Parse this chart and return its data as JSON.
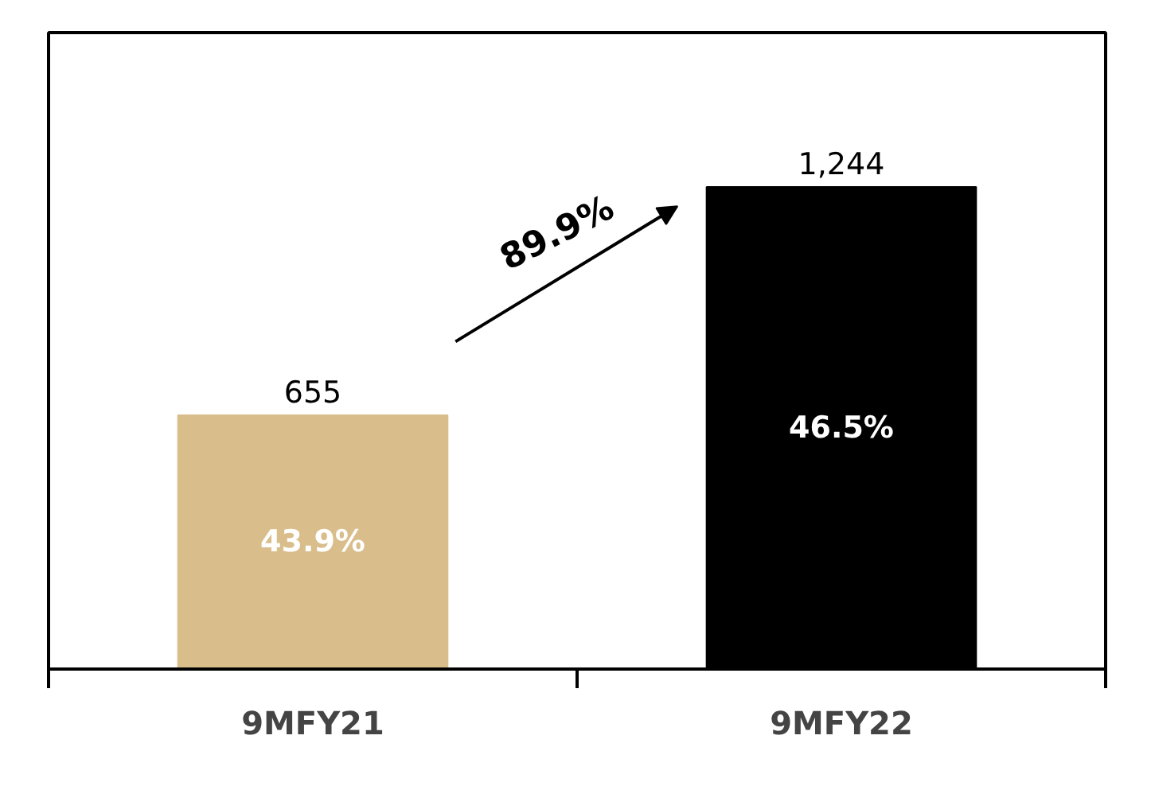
{
  "chart_data": {
    "type": "bar",
    "categories": [
      "9MFY21",
      "9MFY22"
    ],
    "values": [
      655,
      1244
    ],
    "colors": [
      "#d9bd8b",
      "#000000"
    ],
    "value_labels": [
      "655",
      "1,244"
    ],
    "annotations": [
      "43.9%",
      "46.5%",
      "89.9%"
    ]
  }
}
